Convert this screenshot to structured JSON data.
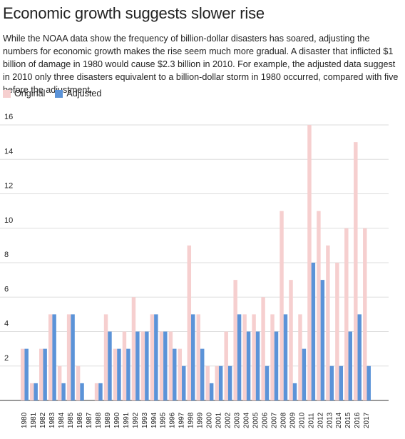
{
  "chart_data": {
    "type": "bar",
    "title": "Economic growth suggests slower rise",
    "subtitle": "While the NOAA data show the frequency of billion-dollar disasters has soared, adjusting the numbers for economic growth makes the rise seem much more gradual. A disaster that inflicted $1 billion of damage in 1980 would cause $2.3 billion in 2010. For example, the adjusted data suggest in 2010 only three disasters equivalent to a billion-dollar storm in 1980 occurred, compared with five before the adjustment.",
    "categories": [
      "1980",
      "1981",
      "1982",
      "1983",
      "1984",
      "1985",
      "1986",
      "1987",
      "1988",
      "1989",
      "1990",
      "1991",
      "1992",
      "1993",
      "1994",
      "1995",
      "1996",
      "1997",
      "1998",
      "1999",
      "2000",
      "2001",
      "2002",
      "2003",
      "2004",
      "2005",
      "2006",
      "2007",
      "2008",
      "2009",
      "2010",
      "2011",
      "2012",
      "2013",
      "2014",
      "2015",
      "2016",
      "2017"
    ],
    "series": [
      {
        "name": "Original",
        "color": "#f6cfcf",
        "values": [
          3,
          1,
          3,
          5,
          2,
          5,
          2,
          0,
          1,
          5,
          3,
          4,
          6,
          4,
          5,
          4,
          4,
          3,
          9,
          5,
          2,
          2,
          4,
          7,
          5,
          5,
          6,
          5,
          11,
          7,
          5,
          16,
          11,
          9,
          8,
          10,
          15,
          10
        ]
      },
      {
        "name": "Adjusted",
        "color": "#5b93d8",
        "values": [
          3,
          1,
          3,
          5,
          1,
          5,
          1,
          0,
          1,
          4,
          3,
          3,
          4,
          4,
          5,
          4,
          3,
          2,
          5,
          3,
          1,
          2,
          2,
          5,
          4,
          4,
          2,
          4,
          5,
          1,
          3,
          8,
          7,
          2,
          2,
          4,
          5,
          2
        ]
      }
    ],
    "ylim": [
      0,
      16
    ],
    "yticks": [
      2,
      4,
      6,
      8,
      10,
      12,
      14,
      16
    ],
    "grid": true
  }
}
